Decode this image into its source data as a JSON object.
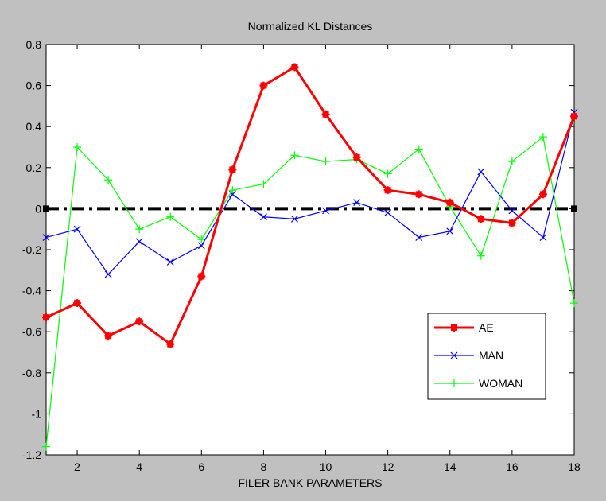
{
  "chart_data": {
    "type": "line",
    "title": "Normalized KL Distances",
    "xlabel": "FILER BANK PARAMETERS",
    "ylabel": "",
    "xlim": [
      1,
      18
    ],
    "ylim": [
      -1.2,
      0.8
    ],
    "x": [
      1,
      2,
      3,
      4,
      5,
      6,
      7,
      8,
      9,
      10,
      11,
      12,
      13,
      14,
      15,
      16,
      17,
      18
    ],
    "xticks": [
      2,
      4,
      6,
      8,
      10,
      12,
      14,
      16,
      18
    ],
    "yticks": [
      -1.2,
      -1,
      -0.8,
      -0.6,
      -0.4,
      -0.2,
      0,
      0.2,
      0.4,
      0.6,
      0.8
    ],
    "xtick_labels": [
      "2",
      "4",
      "6",
      "8",
      "10",
      "12",
      "14",
      "16",
      "18"
    ],
    "ytick_labels": [
      "-1.2",
      "-1",
      "-0.8",
      "-0.6",
      "-0.4",
      "-0.2",
      "0",
      "0.2",
      "0.4",
      "0.6",
      "0.8"
    ],
    "reference_line": {
      "y": 0,
      "style": "dash-dot",
      "color": "#000000"
    },
    "legend_position": "lower-right",
    "series": [
      {
        "name": "AE",
        "color": "#ff0000",
        "marker": "filled-star",
        "values": [
          -0.53,
          -0.46,
          -0.62,
          -0.55,
          -0.66,
          -0.33,
          0.19,
          0.6,
          0.69,
          0.46,
          0.25,
          0.09,
          0.07,
          0.03,
          -0.05,
          -0.07,
          0.07,
          0.45
        ]
      },
      {
        "name": "MAN",
        "color": "#0000ff",
        "marker": "x",
        "values": [
          -0.14,
          -0.1,
          -0.32,
          -0.16,
          -0.26,
          -0.18,
          0.07,
          -0.04,
          -0.05,
          -0.01,
          0.03,
          -0.02,
          -0.14,
          -0.11,
          0.18,
          -0.01,
          -0.14,
          0.47
        ]
      },
      {
        "name": "WOMAN",
        "color": "#00ff00",
        "marker": "plus",
        "values": [
          -1.16,
          0.3,
          0.14,
          -0.1,
          -0.04,
          -0.15,
          0.09,
          0.12,
          0.26,
          0.23,
          0.24,
          0.17,
          0.29,
          0.01,
          -0.23,
          0.23,
          0.35,
          -0.46
        ]
      }
    ]
  }
}
